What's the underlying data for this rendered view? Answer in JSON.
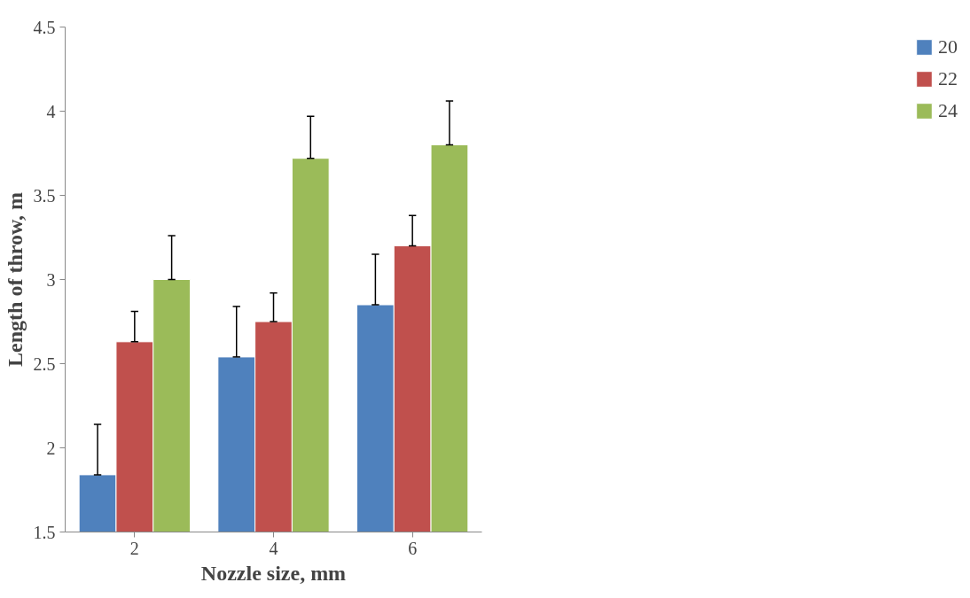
{
  "chart_data": {
    "type": "bar",
    "xlabel": "Nozzle size, mm",
    "ylabel": "Length of throw, m",
    "categories": [
      "2",
      "4",
      "6"
    ],
    "series": [
      {
        "name": "20",
        "color": "#4f81bd",
        "values": [
          1.84,
          2.54,
          2.85
        ],
        "errors": [
          [
            1.84,
            2.14
          ],
          [
            2.54,
            2.84
          ],
          [
            2.85,
            3.15
          ]
        ]
      },
      {
        "name": "22",
        "color": "#c0504d",
        "values": [
          2.63,
          2.75,
          3.2
        ],
        "errors": [
          [
            2.63,
            2.81
          ],
          [
            2.75,
            2.92
          ],
          [
            3.2,
            3.38
          ]
        ]
      },
      {
        "name": "24",
        "color": "#9bbb59",
        "values": [
          3.0,
          3.72,
          3.8
        ],
        "errors": [
          [
            3.0,
            3.26
          ],
          [
            3.72,
            3.97
          ],
          [
            3.8,
            4.06
          ]
        ]
      }
    ],
    "ylim": [
      1.5,
      4.5
    ],
    "yticks": [
      1.5,
      2,
      2.5,
      3,
      3.5,
      4,
      4.5
    ],
    "grid": false,
    "legend": "right"
  }
}
